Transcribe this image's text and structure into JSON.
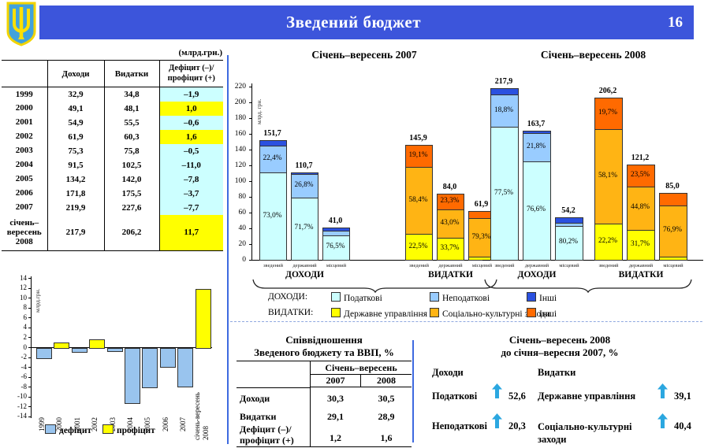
{
  "header": {
    "title": "Зведений бюджет",
    "page": "16",
    "emblem": "ukraine-trident"
  },
  "colors": {
    "header_bg": "#3C55DB",
    "divider": "#3E6AE0",
    "tax": "#CCFFFF",
    "nontax": "#99CCFF",
    "other_revenue": "#2B51E0",
    "gov_admin": "#FFFF00",
    "social": "#FFB414",
    "other_expense": "#FF6A00",
    "deficit": "#99C4EE",
    "proficit": "#FFFF00",
    "highlight_cyan": "#CCFFFF",
    "highlight_yellow": "#FFFF00",
    "arrow": "#2BA7E0"
  },
  "left_table": {
    "unit_label": "(млрд.грн.)",
    "columns": [
      "",
      "Доходи",
      "Видатки",
      "Дефіцит (–)/ профіцит (+)"
    ],
    "rows": [
      {
        "year": "1999",
        "revenue": "32,9",
        "expenditure": "34,8",
        "balance": "–1,9",
        "highlight": "cyan"
      },
      {
        "year": "2000",
        "revenue": "49,1",
        "expenditure": "48,1",
        "balance": "1,0",
        "highlight": "yellow"
      },
      {
        "year": "2001",
        "revenue": "54,9",
        "expenditure": "55,5",
        "balance": "–0,6",
        "highlight": "cyan"
      },
      {
        "year": "2002",
        "revenue": "61,9",
        "expenditure": "60,3",
        "balance": "1,6",
        "highlight": "yellow"
      },
      {
        "year": "2003",
        "revenue": "75,3",
        "expenditure": "75,8",
        "balance": "–0,5",
        "highlight": "cyan"
      },
      {
        "year": "2004",
        "revenue": "91,5",
        "expenditure": "102,5",
        "balance": "–11,0",
        "highlight": "cyan"
      },
      {
        "year": "2005",
        "revenue": "134,2",
        "expenditure": "142,0",
        "balance": "–7,8",
        "highlight": "cyan"
      },
      {
        "year": "2006",
        "revenue": "171,8",
        "expenditure": "175,5",
        "balance": "–3,7",
        "highlight": "cyan"
      },
      {
        "year": "2007",
        "revenue": "219,9",
        "expenditure": "227,6",
        "balance": "–7,7",
        "highlight": "cyan"
      },
      {
        "year": "січень–вересень 2008",
        "revenue": "217,9",
        "expenditure": "206,2",
        "balance": "11,7",
        "highlight": "yellow"
      }
    ]
  },
  "charts_section": {
    "legend": {
      "revenue_label": "ДОХОДИ:",
      "revenue_items": [
        {
          "label": "Податкові",
          "color": "tax"
        },
        {
          "label": "Неподаткові",
          "color": "nontax"
        },
        {
          "label": "Інші",
          "color": "other_revenue"
        }
      ],
      "expenditure_label": "ВИДАТКИ:",
      "expenditure_items": [
        {
          "label": "Державне управління",
          "color": "gov_admin"
        },
        {
          "label": "Соціально-культурні заходи",
          "color": "social"
        },
        {
          "label": "Інші",
          "color": "other_expense"
        }
      ]
    }
  },
  "chart_data": [
    {
      "type": "bar",
      "stacked": true,
      "title": "Січень–вересень 2007",
      "ylabel": "млрд. грн.",
      "ylim": [
        0,
        220
      ],
      "ytick_step": 20,
      "grid": false,
      "category_labels": [
        "зведений",
        "державний",
        "місцевий"
      ],
      "groups": [
        {
          "name": "ДОХОДИ",
          "bars": [
            {
              "category": "зведений",
              "total": 151.7,
              "total_label": "151,7",
              "segments": [
                {
                  "name": "Податкові",
                  "color": "tax",
                  "pct": 73.0,
                  "pct_label": "73,0%"
                },
                {
                  "name": "Неподаткові",
                  "color": "nontax",
                  "pct": 22.4,
                  "pct_label": "22,4%"
                },
                {
                  "name": "Інші",
                  "color": "other_revenue",
                  "pct": 4.6,
                  "pct_label": ""
                }
              ]
            },
            {
              "category": "державний",
              "total": 110.7,
              "total_label": "110,7",
              "segments": [
                {
                  "name": "Податкові",
                  "color": "tax",
                  "pct": 71.7,
                  "pct_label": "71,7%"
                },
                {
                  "name": "Неподаткові",
                  "color": "nontax",
                  "pct": 26.8,
                  "pct_label": "26,8%"
                },
                {
                  "name": "Інші",
                  "color": "other_revenue",
                  "pct": 1.5,
                  "pct_label": ""
                }
              ]
            },
            {
              "category": "місцевий",
              "total": 41.0,
              "total_label": "41,0",
              "segments": [
                {
                  "name": "Податкові",
                  "color": "tax",
                  "pct": 76.5,
                  "pct_label": "76,5%"
                },
                {
                  "name": "Неподаткові",
                  "color": "nontax",
                  "pct": 13.5,
                  "pct_label": ""
                },
                {
                  "name": "Інші",
                  "color": "other_revenue",
                  "pct": 10.0,
                  "pct_label": ""
                }
              ]
            }
          ]
        },
        {
          "name": "ВИДАТКИ",
          "bars": [
            {
              "category": "зведений",
              "total": 145.9,
              "total_label": "145,9",
              "segments": [
                {
                  "name": "Державне управління",
                  "color": "gov_admin",
                  "pct": 22.5,
                  "pct_label": "22,5%"
                },
                {
                  "name": "Соціально-культурні заходи",
                  "color": "social",
                  "pct": 58.4,
                  "pct_label": "58,4%"
                },
                {
                  "name": "Інші",
                  "color": "other_expense",
                  "pct": 19.1,
                  "pct_label": "19,1%"
                }
              ]
            },
            {
              "category": "державний",
              "total": 84.0,
              "total_label": "84,0",
              "segments": [
                {
                  "name": "Державне управління",
                  "color": "gov_admin",
                  "pct": 33.7,
                  "pct_label": "33,7%"
                },
                {
                  "name": "Соціально-культурні заходи",
                  "color": "social",
                  "pct": 43.0,
                  "pct_label": "43,0%"
                },
                {
                  "name": "Інші",
                  "color": "other_expense",
                  "pct": 23.3,
                  "pct_label": "23,3%"
                }
              ]
            },
            {
              "category": "місцевий",
              "total": 61.9,
              "total_label": "61,9",
              "segments": [
                {
                  "name": "Державне управління",
                  "color": "gov_admin",
                  "pct": 6.0,
                  "pct_label": ""
                },
                {
                  "name": "Соціально-культурні заходи",
                  "color": "social",
                  "pct": 79.3,
                  "pct_label": "79,3%"
                },
                {
                  "name": "Інші",
                  "color": "other_expense",
                  "pct": 14.7,
                  "pct_label": ""
                }
              ]
            }
          ]
        }
      ]
    },
    {
      "type": "bar",
      "stacked": true,
      "title": "Січень–вересень 2008",
      "ylabel": "",
      "ylim": [
        0,
        220
      ],
      "ytick_step": 20,
      "grid": false,
      "category_labels": [
        "зведений",
        "державний",
        "місцевий"
      ],
      "groups": [
        {
          "name": "ДОХОДИ",
          "bars": [
            {
              "category": "зведений",
              "total": 217.9,
              "total_label": "217,9",
              "segments": [
                {
                  "name": "Податкові",
                  "color": "tax",
                  "pct": 77.5,
                  "pct_label": "77,5%"
                },
                {
                  "name": "Неподаткові",
                  "color": "nontax",
                  "pct": 18.8,
                  "pct_label": "18,8%"
                },
                {
                  "name": "Інші",
                  "color": "other_revenue",
                  "pct": 3.7,
                  "pct_label": ""
                }
              ]
            },
            {
              "category": "державний",
              "total": 163.7,
              "total_label": "163,7",
              "segments": [
                {
                  "name": "Податкові",
                  "color": "tax",
                  "pct": 76.6,
                  "pct_label": "76,6%"
                },
                {
                  "name": "Неподаткові",
                  "color": "nontax",
                  "pct": 21.8,
                  "pct_label": "21,8%"
                },
                {
                  "name": "Інші",
                  "color": "other_revenue",
                  "pct": 1.6,
                  "pct_label": ""
                }
              ]
            },
            {
              "category": "місцевий",
              "total": 54.2,
              "total_label": "54,2",
              "segments": [
                {
                  "name": "Податкові",
                  "color": "tax",
                  "pct": 80.2,
                  "pct_label": "80,2%"
                },
                {
                  "name": "Неподаткові",
                  "color": "nontax",
                  "pct": 7.4,
                  "pct_label": ""
                },
                {
                  "name": "Інші",
                  "color": "other_revenue",
                  "pct": 12.4,
                  "pct_label": ""
                }
              ]
            }
          ]
        },
        {
          "name": "ВИДАТКИ",
          "bars": [
            {
              "category": "зведений",
              "total": 206.2,
              "total_label": "206,2",
              "segments": [
                {
                  "name": "Державне управління",
                  "color": "gov_admin",
                  "pct": 22.2,
                  "pct_label": "22,2%"
                },
                {
                  "name": "Соціально-культурні заходи",
                  "color": "social",
                  "pct": 58.1,
                  "pct_label": "58,1%"
                },
                {
                  "name": "Інші",
                  "color": "other_expense",
                  "pct": 19.7,
                  "pct_label": "19,7%"
                }
              ]
            },
            {
              "category": "державний",
              "total": 121.2,
              "total_label": "121,2",
              "segments": [
                {
                  "name": "Державне управління",
                  "color": "gov_admin",
                  "pct": 31.7,
                  "pct_label": "31,7%"
                },
                {
                  "name": "Соціально-культурні заходи",
                  "color": "social",
                  "pct": 44.8,
                  "pct_label": "44,8%"
                },
                {
                  "name": "Інші",
                  "color": "other_expense",
                  "pct": 23.5,
                  "pct_label": "23,5%"
                }
              ]
            },
            {
              "category": "місцевий",
              "total": 85.0,
              "total_label": "85,0",
              "segments": [
                {
                  "name": "Державне управління",
                  "color": "gov_admin",
                  "pct": 4.7,
                  "pct_label": ""
                },
                {
                  "name": "Соціально-культурні заходи",
                  "color": "social",
                  "pct": 76.9,
                  "pct_label": "76,9%"
                },
                {
                  "name": "Інші",
                  "color": "other_expense",
                  "pct": 18.4,
                  "pct_label": ""
                }
              ]
            }
          ]
        }
      ]
    },
    {
      "type": "bar",
      "title": "",
      "ylabel": "млрд.грн.",
      "ylim": [
        -14,
        14
      ],
      "ytick_step": 2,
      "grid": false,
      "categories": [
        "1999",
        "2000",
        "2001",
        "2002",
        "2003",
        "2004",
        "2005",
        "2006",
        "2007",
        "січень-вересень 2008"
      ],
      "values": [
        -1.9,
        1.0,
        -0.6,
        1.6,
        -0.5,
        -11.0,
        -7.8,
        -3.7,
        -7.7,
        11.7
      ],
      "legend": [
        {
          "label": "дефіцит",
          "color": "deficit"
        },
        {
          "label": "профіцит",
          "color": "proficit"
        }
      ],
      "legend_position": "bottom"
    }
  ],
  "ratio_table": {
    "title_line1": "Співвідношення",
    "title_line2": "Зведеного бюджету та ВВП, %",
    "period_header": "Січень–вересень",
    "year_columns": [
      "2007",
      "2008"
    ],
    "rows": [
      {
        "label": "Доходи",
        "v2007": "30,3",
        "v2008": "30,5"
      },
      {
        "label": "Видатки",
        "v2007": "29,1",
        "v2008": "28,9"
      },
      {
        "label": "Дефіцит (–)/ профіцит (+)",
        "v2007": "1,2",
        "v2008": "1,6"
      }
    ]
  },
  "growth_panel": {
    "title_line1": "Січень–вересень 2008",
    "title_line2": "до січня–вересня 2007, %",
    "left_header": "Доходи",
    "right_header": "Видатки",
    "left_items": [
      {
        "label": "Податкові",
        "value": "52,6",
        "direction": "up"
      },
      {
        "label": "Неподаткові",
        "value": "20,3",
        "direction": "up"
      }
    ],
    "right_items": [
      {
        "label": "Державне управління",
        "value": "39,1",
        "direction": "up"
      },
      {
        "label": "Соціально-культурні заходи",
        "value": "40,4",
        "direction": "up"
      }
    ]
  }
}
